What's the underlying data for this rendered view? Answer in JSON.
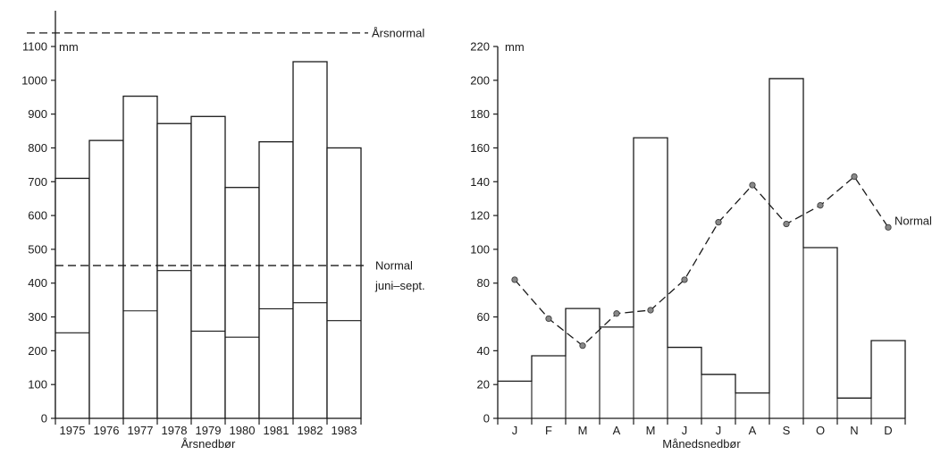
{
  "chart_data": [
    {
      "type": "bar",
      "xlabel": "Årsnedbør",
      "ylabel": "mm",
      "ylim": [
        0,
        1100
      ],
      "yticks": [
        0,
        100,
        200,
        300,
        400,
        500,
        600,
        700,
        800,
        900,
        1000,
        1100
      ],
      "categories": [
        "1975",
        "1976",
        "1977",
        "1978",
        "1979",
        "1980",
        "1981",
        "1982",
        "1983"
      ],
      "series": [
        {
          "values": [
            710,
            822,
            953,
            872,
            893,
            683,
            818,
            1055,
            800
          ]
        },
        {
          "values": [
            253,
            null,
            318,
            437,
            258,
            240,
            324,
            342,
            289
          ]
        }
      ],
      "reference_lines": [
        {
          "label": "Årsnormal",
          "value": 1140
        },
        {
          "label": "Normal",
          "sublabel": "juni–sept.",
          "value": 452
        }
      ]
    },
    {
      "type": "bar",
      "xlabel": "Månedsnedbør",
      "ylabel": "mm",
      "ylim": [
        0,
        220
      ],
      "yticks": [
        0,
        20,
        40,
        60,
        80,
        100,
        120,
        140,
        160,
        180,
        200,
        220
      ],
      "categories": [
        "J",
        "F",
        "M",
        "A",
        "M",
        "J",
        "J",
        "A",
        "S",
        "O",
        "N",
        "D"
      ],
      "series": [
        {
          "values": [
            22,
            37,
            65,
            54,
            166,
            42,
            26,
            15,
            201,
            101,
            12,
            46
          ]
        },
        {
          "name": "Normal",
          "type": "line",
          "values": [
            82,
            59,
            43,
            62,
            64,
            82,
            116,
            138,
            115,
            126,
            143,
            113
          ]
        }
      ]
    }
  ]
}
